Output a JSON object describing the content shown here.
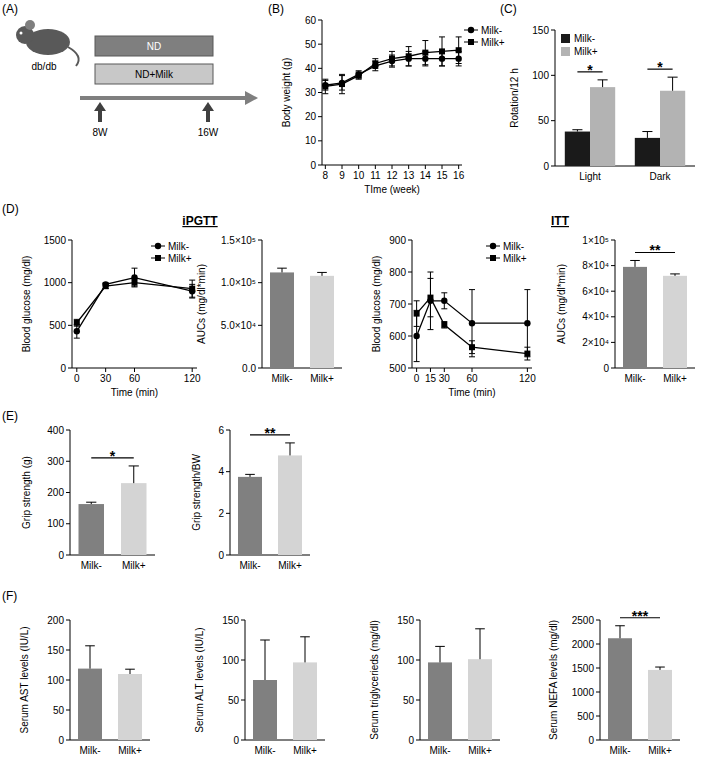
{
  "panels": [
    "(A)",
    "(B)",
    "(C)",
    "(D)",
    "(E)",
    "(F)"
  ],
  "schematic": {
    "mouse_label": "db/db",
    "groups": [
      "ND",
      "ND+Milk"
    ],
    "timepoints": [
      "8W",
      "16W"
    ]
  },
  "chart_data": [
    {
      "type": "line",
      "x": [
        8,
        9,
        10,
        11,
        12,
        13,
        14,
        15,
        16
      ],
      "xlim": [
        7.8,
        16.2
      ],
      "xticks": [
        8,
        9,
        10,
        11,
        12,
        13,
        14,
        15,
        16
      ],
      "ylim": [
        0,
        60
      ],
      "yticks": [
        0,
        10,
        20,
        30,
        40,
        50,
        60
      ],
      "x_label": "TIme (week)",
      "y_label": "Body weight (g)",
      "legend": "upper right",
      "series": [
        {
          "name": "Milk-",
          "color": "#000000",
          "marker": "circle",
          "values": [
            33,
            34,
            37.5,
            41,
            43,
            44,
            44,
            44,
            44
          ],
          "errors": [
            2,
            3,
            1.5,
            2,
            2.5,
            3,
            3,
            3,
            3
          ]
        },
        {
          "name": "Milk+",
          "color": "#000000",
          "marker": "square",
          "values": [
            32.5,
            33.5,
            37,
            42,
            44,
            45,
            46.5,
            47,
            47.5
          ],
          "errors": [
            3,
            4,
            1.5,
            2,
            3,
            4,
            5,
            6,
            5.5
          ]
        }
      ]
    },
    {
      "type": "bar",
      "categories": [
        "Light",
        "Dark"
      ],
      "ylim": [
        0,
        150
      ],
      "yticks": [
        0,
        50,
        100,
        150
      ],
      "y_label": "Rotation/12 h",
      "legend": "upper left",
      "series": [
        {
          "name": "Milk-",
          "color": "#1a1a1a",
          "values": [
            38,
            31
          ],
          "errors": [
            2,
            7
          ]
        },
        {
          "name": "Milk+",
          "color": "#b3b3b3",
          "values": [
            87,
            83
          ],
          "errors": [
            8,
            15
          ]
        }
      ],
      "annotations": [
        {
          "text": "*",
          "category": "Light"
        },
        {
          "text": "*",
          "category": "Dark"
        }
      ]
    },
    {
      "type": "line",
      "title": "iPGTT",
      "x": [
        0,
        30,
        60,
        120
      ],
      "xlim": [
        -5,
        125
      ],
      "xticks": [
        0,
        30,
        60,
        120
      ],
      "ylim": [
        0,
        1500
      ],
      "yticks": [
        0,
        500,
        1000,
        1500
      ],
      "x_label": "Time (min)",
      "y_label": "Blood glucose (mg/dl)",
      "legend": "upper right",
      "series": [
        {
          "name": "Milk-",
          "color": "#000000",
          "marker": "circle",
          "values": [
            430,
            980,
            1060,
            900
          ],
          "errors": [
            80,
            20,
            110,
            80
          ]
        },
        {
          "name": "Milk+",
          "color": "#000000",
          "marker": "square",
          "values": [
            530,
            960,
            1000,
            930
          ],
          "errors": [
            40,
            30,
            40,
            100
          ]
        }
      ]
    },
    {
      "type": "bar",
      "categories": [
        "Milk-",
        "Milk+"
      ],
      "values": [
        112000,
        108000
      ],
      "errors": [
        5000,
        4000
      ],
      "colors": [
        "#808080",
        "#d4d4d4"
      ],
      "ylim": [
        0,
        150000
      ],
      "yticks": [
        {
          "value": 0,
          "label": "0.0"
        },
        {
          "value": 50000,
          "label": "5.0×10⁴"
        },
        {
          "value": 100000,
          "label": "1.0×10⁵"
        },
        {
          "value": 150000,
          "label": "1.5×10⁵"
        }
      ],
      "y_label": "AUCs (mg/dl*min)"
    },
    {
      "type": "line",
      "title": "ITT",
      "x": [
        0,
        15,
        30,
        60,
        120
      ],
      "xlim": [
        -5,
        125
      ],
      "xticks": [
        0,
        15,
        30,
        60,
        120
      ],
      "ylim": [
        500,
        900
      ],
      "yticks": [
        500,
        600,
        700,
        800,
        900
      ],
      "x_label": "Time (min)",
      "y_label": "Blood glucose (mg/dl)",
      "legend": "upper right",
      "series": [
        {
          "name": "Milk-",
          "color": "#000000",
          "marker": "circle",
          "values": [
            600,
            710,
            710,
            640,
            640
          ],
          "errors": [
            80,
            90,
            25,
            105,
            105
          ]
        },
        {
          "name": "Milk+",
          "color": "#000000",
          "marker": "square",
          "values": [
            670,
            720,
            635,
            565,
            545
          ],
          "errors": [
            40,
            60,
            10,
            20,
            20
          ]
        }
      ]
    },
    {
      "type": "bar",
      "categories": [
        "Milk-",
        "Milk+"
      ],
      "values": [
        79000,
        72000
      ],
      "errors": [
        5000,
        1500
      ],
      "colors": [
        "#808080",
        "#d4d4d4"
      ],
      "ylim": [
        0,
        100000
      ],
      "yticks": [
        0,
        {
          "value": 20000,
          "label": "2×10⁴"
        },
        {
          "value": 40000,
          "label": "4×10⁴"
        },
        {
          "value": 60000,
          "label": "6×10⁴"
        },
        {
          "value": 80000,
          "label": "8×10⁴"
        },
        {
          "value": 100000,
          "label": "1×10⁵"
        }
      ],
      "y_label": "AUCs (mg/dl*min)",
      "annotations": [
        {
          "text": "**",
          "between": [
            "Milk-",
            "Milk+"
          ]
        }
      ]
    },
    {
      "type": "bar",
      "categories": [
        "Milk-",
        "Milk+"
      ],
      "values": [
        163,
        230
      ],
      "errors": [
        6,
        55
      ],
      "colors": [
        "#808080",
        "#d4d4d4"
      ],
      "ylim": [
        0,
        400
      ],
      "yticks": [
        0,
        100,
        200,
        300,
        400
      ],
      "y_label": "Grip strength (g)",
      "annotations": [
        {
          "text": "*",
          "between": [
            "Milk-",
            "Milk+"
          ]
        }
      ]
    },
    {
      "type": "bar",
      "categories": [
        "Milk-",
        "Milk+"
      ],
      "values": [
        3.75,
        4.78
      ],
      "errors": [
        0.12,
        0.6
      ],
      "colors": [
        "#808080",
        "#d4d4d4"
      ],
      "ylim": [
        0,
        6
      ],
      "yticks": [
        0,
        2,
        4,
        6
      ],
      "y_label": "Grip strength/BW",
      "annotations": [
        {
          "text": "**",
          "between": [
            "Milk-",
            "Milk+"
          ]
        }
      ]
    },
    {
      "type": "bar",
      "categories": [
        "Milk-",
        "Milk+"
      ],
      "values": [
        119,
        110
      ],
      "errors": [
        38,
        8
      ],
      "colors": [
        "#808080",
        "#d4d4d4"
      ],
      "ylim": [
        0,
        200
      ],
      "yticks": [
        0,
        50,
        100,
        150,
        200
      ],
      "y_label": "Serum AST levels (IU/L)"
    },
    {
      "type": "bar",
      "categories": [
        "Milk-",
        "Milk+"
      ],
      "values": [
        75,
        97
      ],
      "errors": [
        50,
        32
      ],
      "colors": [
        "#808080",
        "#d4d4d4"
      ],
      "ylim": [
        0,
        150
      ],
      "yticks": [
        0,
        50,
        100,
        150
      ],
      "y_label": "Serum ALT levels (IU/L)"
    },
    {
      "type": "bar",
      "categories": [
        "Milk-",
        "Milk+"
      ],
      "values": [
        97,
        101
      ],
      "errors": [
        20,
        38
      ],
      "colors": [
        "#808080",
        "#d4d4d4"
      ],
      "ylim": [
        0,
        150
      ],
      "yticks": [
        0,
        50,
        100,
        150
      ],
      "y_label": "Serum triglycerieds (mg/dl)"
    },
    {
      "type": "bar",
      "categories": [
        "Milk-",
        "Milk+"
      ],
      "values": [
        2120,
        1460
      ],
      "errors": [
        260,
        60
      ],
      "colors": [
        "#808080",
        "#d4d4d4"
      ],
      "ylim": [
        0,
        2500
      ],
      "yticks": [
        0,
        500,
        1000,
        1500,
        2000,
        2500
      ],
      "y_label": "Serum NEFA levels (mg/dl)",
      "annotations": [
        {
          "text": "***",
          "between": [
            "Milk-",
            "Milk+"
          ]
        }
      ]
    }
  ]
}
